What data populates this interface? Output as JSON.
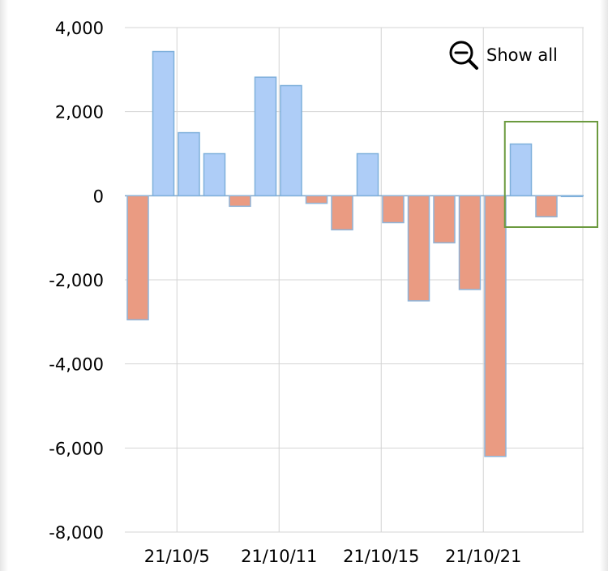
{
  "controls": {
    "show_all_label": "Show all",
    "show_all_icon": "zoom-out-icon"
  },
  "colors": {
    "positive_fill": "#aecdf7",
    "positive_stroke": "#7fb0db",
    "negative_fill": "#ea9b82",
    "negative_stroke": "#8fb4d8",
    "grid": "#d4d4d4",
    "selection_box": "#6b9a3e"
  },
  "chart_data": {
    "type": "bar",
    "title": "",
    "xlabel": "",
    "ylabel": "",
    "ylim": [
      -8000,
      4000
    ],
    "grid": true,
    "legend": "none",
    "y_ticks": [
      "4,000",
      "2,000",
      "0",
      "-2,000",
      "-4,000",
      "-6,000",
      "-8,000"
    ],
    "x_tick_labels": [
      "21/10/5",
      "21/10/11",
      "21/10/15",
      "21/10/21"
    ],
    "values": [
      -2950,
      3430,
      1500,
      1000,
      -250,
      2820,
      2620,
      -180,
      -810,
      1000,
      -640,
      -2500,
      -1120,
      -2230,
      -6200,
      1230,
      -500,
      0
    ],
    "selection_box_start_index": 15
  }
}
